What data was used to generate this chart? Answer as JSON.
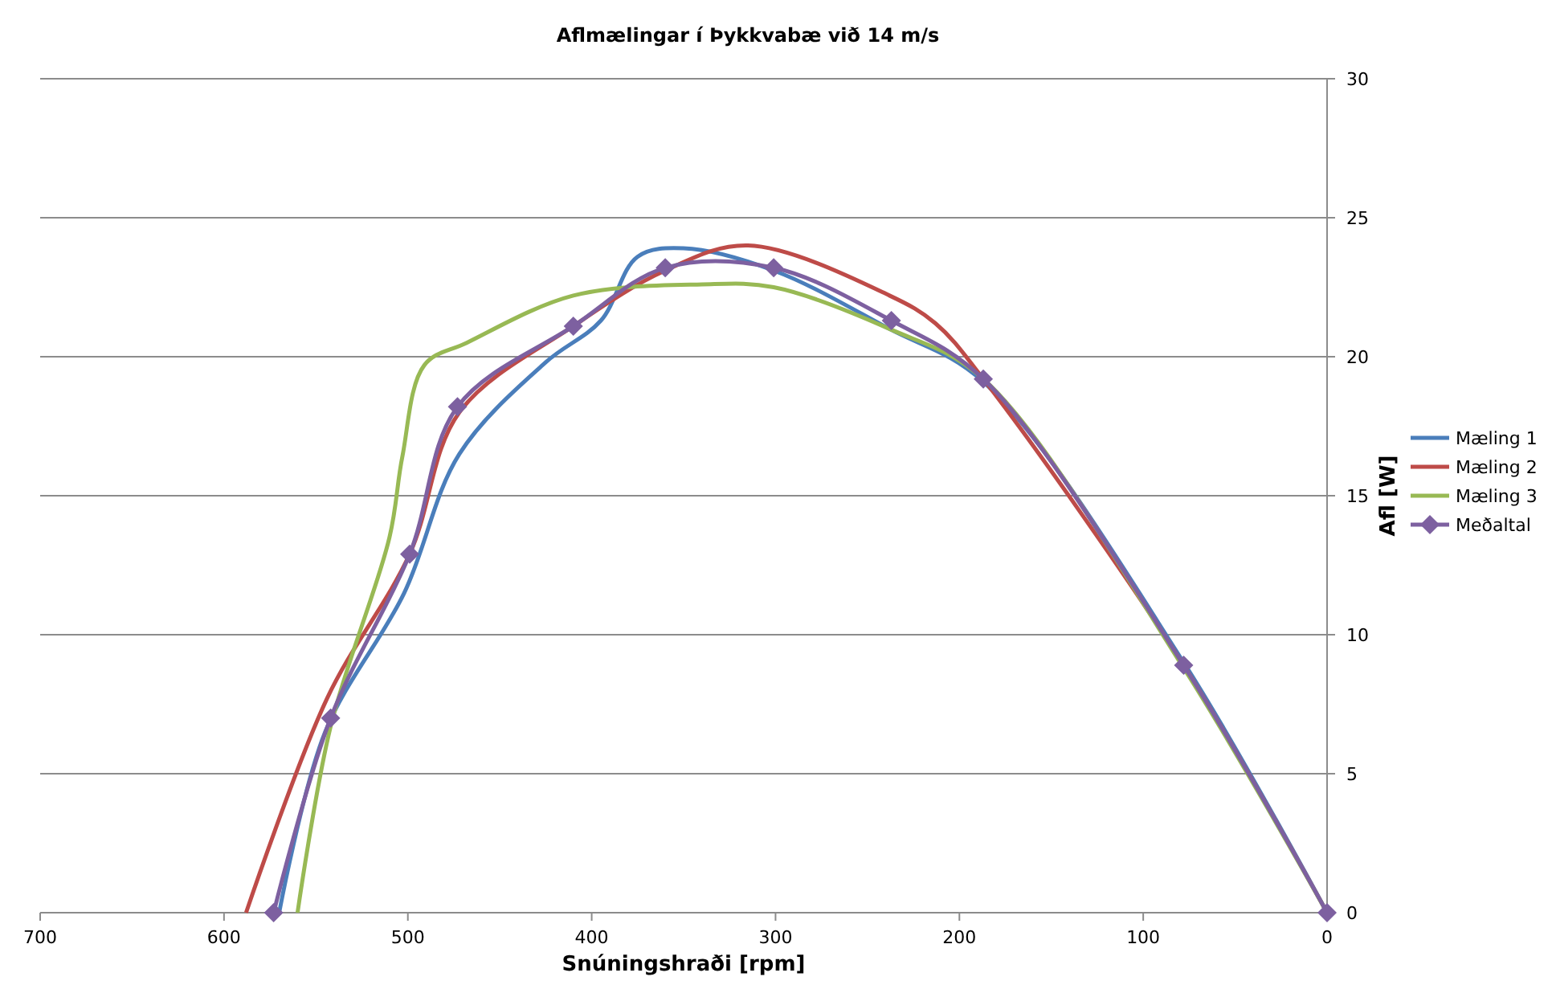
{
  "chart_data": {
    "type": "line",
    "title": "Aflmælingar í Þykkvabæ við 14 m/s",
    "xlabel": "Snúningshraði [rpm]",
    "ylabel": "Afl [W]",
    "xlim": [
      700,
      0
    ],
    "xticks": [
      700,
      600,
      500,
      400,
      300,
      200,
      100,
      0
    ],
    "ylim": [
      0,
      30
    ],
    "yticks": [
      0,
      5,
      10,
      15,
      20,
      25,
      30
    ],
    "grid": "y",
    "legend": "right",
    "series": [
      {
        "name": "Mæling 1",
        "color": "#4a7ebb",
        "marker": "none",
        "x": [
          570,
          545,
          502,
          472,
          425,
          395,
          375,
          350,
          301,
          238,
          187,
          78,
          0
        ],
        "values": [
          0,
          6.5,
          11.5,
          16.5,
          19.8,
          21.3,
          23.6,
          23.9,
          23.1,
          21.0,
          19.1,
          9.0,
          0
        ]
      },
      {
        "name": "Mæling 2",
        "color": "#be4b48",
        "marker": "none",
        "x": [
          588,
          544,
          499,
          472,
          410,
          360,
          315,
          238,
          213,
          187,
          78,
          0
        ],
        "values": [
          0,
          7.7,
          12.9,
          18.0,
          21.1,
          23.1,
          24.0,
          22.2,
          21.2,
          19.2,
          8.9,
          0
        ]
      },
      {
        "name": "Mæling 3",
        "color": "#98b954",
        "marker": "none",
        "x": [
          560,
          542,
          510,
          503,
          491,
          468,
          410,
          340,
          301,
          238,
          187,
          78,
          0
        ],
        "values": [
          0,
          6.7,
          13.5,
          16.4,
          19.7,
          20.5,
          22.2,
          22.6,
          22.5,
          21.0,
          19.2,
          8.8,
          0
        ]
      },
      {
        "name": "Meðaltal",
        "color": "#7d60a0",
        "marker": "diamond",
        "x": [
          573,
          542,
          499,
          473,
          410,
          360,
          301,
          237,
          187,
          78,
          0
        ],
        "values": [
          0,
          7.0,
          12.9,
          18.2,
          21.1,
          23.2,
          23.2,
          21.3,
          19.2,
          8.9,
          0
        ]
      }
    ]
  }
}
